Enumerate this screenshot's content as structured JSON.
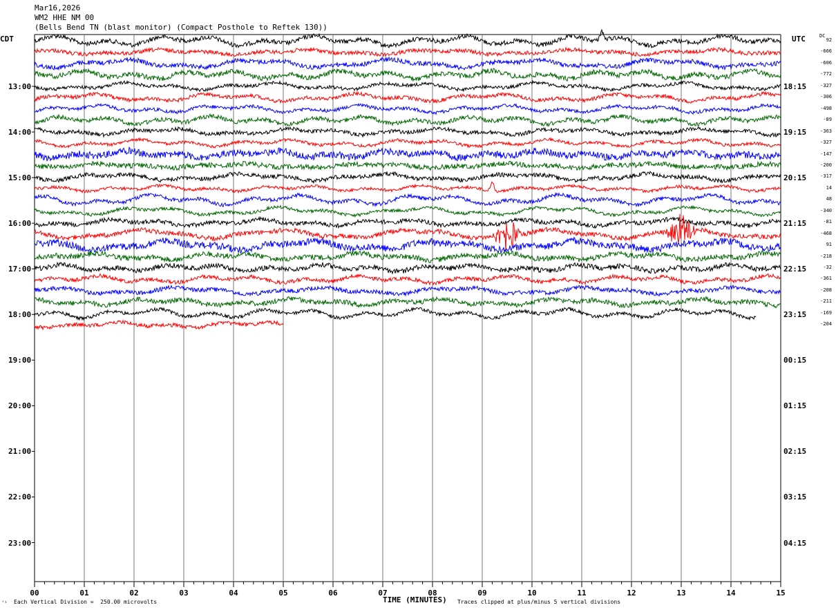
{
  "header": {
    "date": "Mar16,2026",
    "station": "WM2 HHE NM 00",
    "description": "(Bells Bend TN (blast monitor) (Compact Posthole to Reftek 130))"
  },
  "labels": {
    "left_zone": "CDT",
    "right_zone": "UTC",
    "dc": "DC",
    "xlabel": "TIME (MINUTES)",
    "scale_note": "Each Vertical Division =  250.00 microvolts",
    "clip_note": "Traces clipped at plus/minus 5 vertical divisions",
    "corner_mark": "‘¹"
  },
  "colors": {
    "trace_cycle": [
      "#000000",
      "#ff0000",
      "#0000ff",
      "#006600"
    ],
    "grid": "#000000"
  },
  "chart_data": {
    "type": "line",
    "xlabel": "TIME (MINUTES)",
    "xlim": [
      0,
      15
    ],
    "x_ticks": [
      "00",
      "01",
      "02",
      "03",
      "04",
      "05",
      "06",
      "07",
      "08",
      "09",
      "10",
      "11",
      "12",
      "13",
      "14",
      "15"
    ],
    "left_hour_labels": [
      "13:00",
      "14:00",
      "15:00",
      "16:00",
      "17:00",
      "18:00",
      "19:00",
      "20:00",
      "21:00",
      "22:00",
      "23:00"
    ],
    "right_hour_labels": [
      "18:15",
      "19:15",
      "20:15",
      "21:15",
      "22:15",
      "23:15",
      "00:15",
      "01:15",
      "02:15",
      "03:15",
      "04:15"
    ],
    "traces_per_hour": 4,
    "minutes_per_trace": 15,
    "dc_offsets": [
      92,
      -666,
      -606,
      -772,
      -327,
      -306,
      -498,
      -89,
      -363,
      -327,
      -147,
      -200,
      -317,
      14,
      48,
      -340,
      -81,
      -468,
      91,
      -218,
      -32,
      -361,
      -208,
      -211,
      -169,
      -204
    ],
    "trace_count": 26,
    "last_trace_end_minute": 5.0,
    "events": [
      {
        "trace": 0,
        "minute": 11.4,
        "note": "spike"
      },
      {
        "trace": 13,
        "minute": 9.2,
        "note": "spike"
      },
      {
        "trace": 17,
        "minute": 9.5,
        "note": "burst"
      },
      {
        "trace": 17,
        "minute": 13.0,
        "note": "burst"
      }
    ]
  }
}
